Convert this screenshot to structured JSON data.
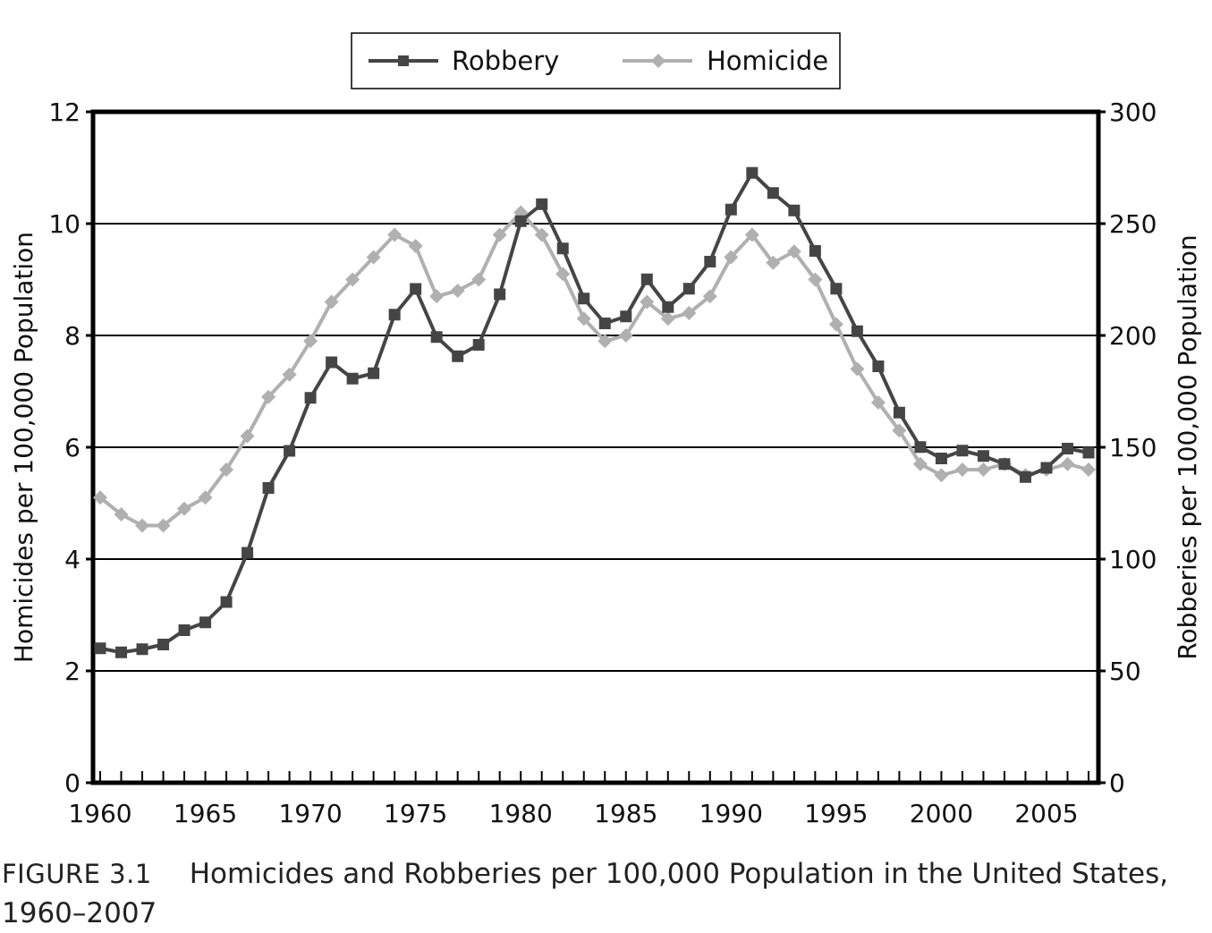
{
  "legend": {
    "robbery_label": "Robbery",
    "homicide_label": "Homicide"
  },
  "axes": {
    "left_label": "Homicides per 100,000 Population",
    "right_label": "Robberies per 100,000 Population",
    "left_ticks": [
      "0",
      "2",
      "4",
      "6",
      "8",
      "10",
      "12"
    ],
    "right_ticks": [
      "0",
      "50",
      "100",
      "150",
      "200",
      "250",
      "300"
    ],
    "x_ticks": [
      "1960",
      "1965",
      "1970",
      "1975",
      "1980",
      "1985",
      "1990",
      "1995",
      "2000",
      "2005"
    ]
  },
  "caption": {
    "figure": "FIGURE 3.1",
    "text": "Homicides and Robberies per 100,000 Population in the United States, 1960–2007"
  },
  "colors": {
    "robbery": "#454545",
    "homicide": "#b0b0b0",
    "grid": "#000000"
  },
  "chart_data": {
    "type": "line",
    "title": "Homicides and Robberies per 100,000 Population in the United States, 1960–2007",
    "xlabel": "",
    "ylabel": "Homicides per 100,000 Population",
    "y2label": "Robberies per 100,000 Population",
    "ylim": [
      0,
      12
    ],
    "y2lim": [
      0,
      300
    ],
    "grid": true,
    "legend_position": "top",
    "x": [
      1960,
      1961,
      1962,
      1963,
      1964,
      1965,
      1966,
      1967,
      1968,
      1969,
      1970,
      1971,
      1972,
      1973,
      1974,
      1975,
      1976,
      1977,
      1978,
      1979,
      1980,
      1981,
      1982,
      1983,
      1984,
      1985,
      1986,
      1987,
      1988,
      1989,
      1990,
      1991,
      1992,
      1993,
      1994,
      1995,
      1996,
      1997,
      1998,
      1999,
      2000,
      2001,
      2002,
      2003,
      2004,
      2005,
      2006,
      2007
    ],
    "series": [
      {
        "name": "Robbery",
        "axis": "right",
        "marker": "square",
        "values": [
          60.1,
          58.3,
          59.7,
          61.8,
          68.2,
          71.7,
          80.8,
          102.8,
          131.8,
          148.4,
          172.1,
          188.0,
          180.7,
          183.1,
          209.3,
          220.8,
          199.3,
          190.7,
          195.8,
          218.4,
          251.1,
          258.7,
          238.9,
          216.5,
          205.4,
          208.5,
          225.1,
          212.7,
          220.9,
          233.0,
          256.3,
          272.7,
          263.7,
          255.9,
          237.8,
          220.9,
          201.9,
          186.2,
          165.5,
          150.1,
          145.0,
          148.5,
          146.1,
          142.5,
          136.7,
          140.8,
          149.4,
          147.6
        ]
      },
      {
        "name": "Homicide",
        "axis": "left",
        "marker": "diamond",
        "values": [
          5.1,
          4.8,
          4.6,
          4.6,
          4.9,
          5.1,
          5.6,
          6.2,
          6.9,
          7.3,
          7.9,
          8.6,
          9.0,
          9.4,
          9.8,
          9.6,
          8.7,
          8.8,
          9.0,
          9.8,
          10.2,
          9.8,
          9.1,
          8.3,
          7.9,
          8.0,
          8.6,
          8.3,
          8.4,
          8.7,
          9.4,
          9.8,
          9.3,
          9.5,
          9.0,
          8.2,
          7.4,
          6.8,
          6.3,
          5.7,
          5.5,
          5.6,
          5.6,
          5.7,
          5.5,
          5.6,
          5.7,
          5.6
        ]
      }
    ]
  }
}
